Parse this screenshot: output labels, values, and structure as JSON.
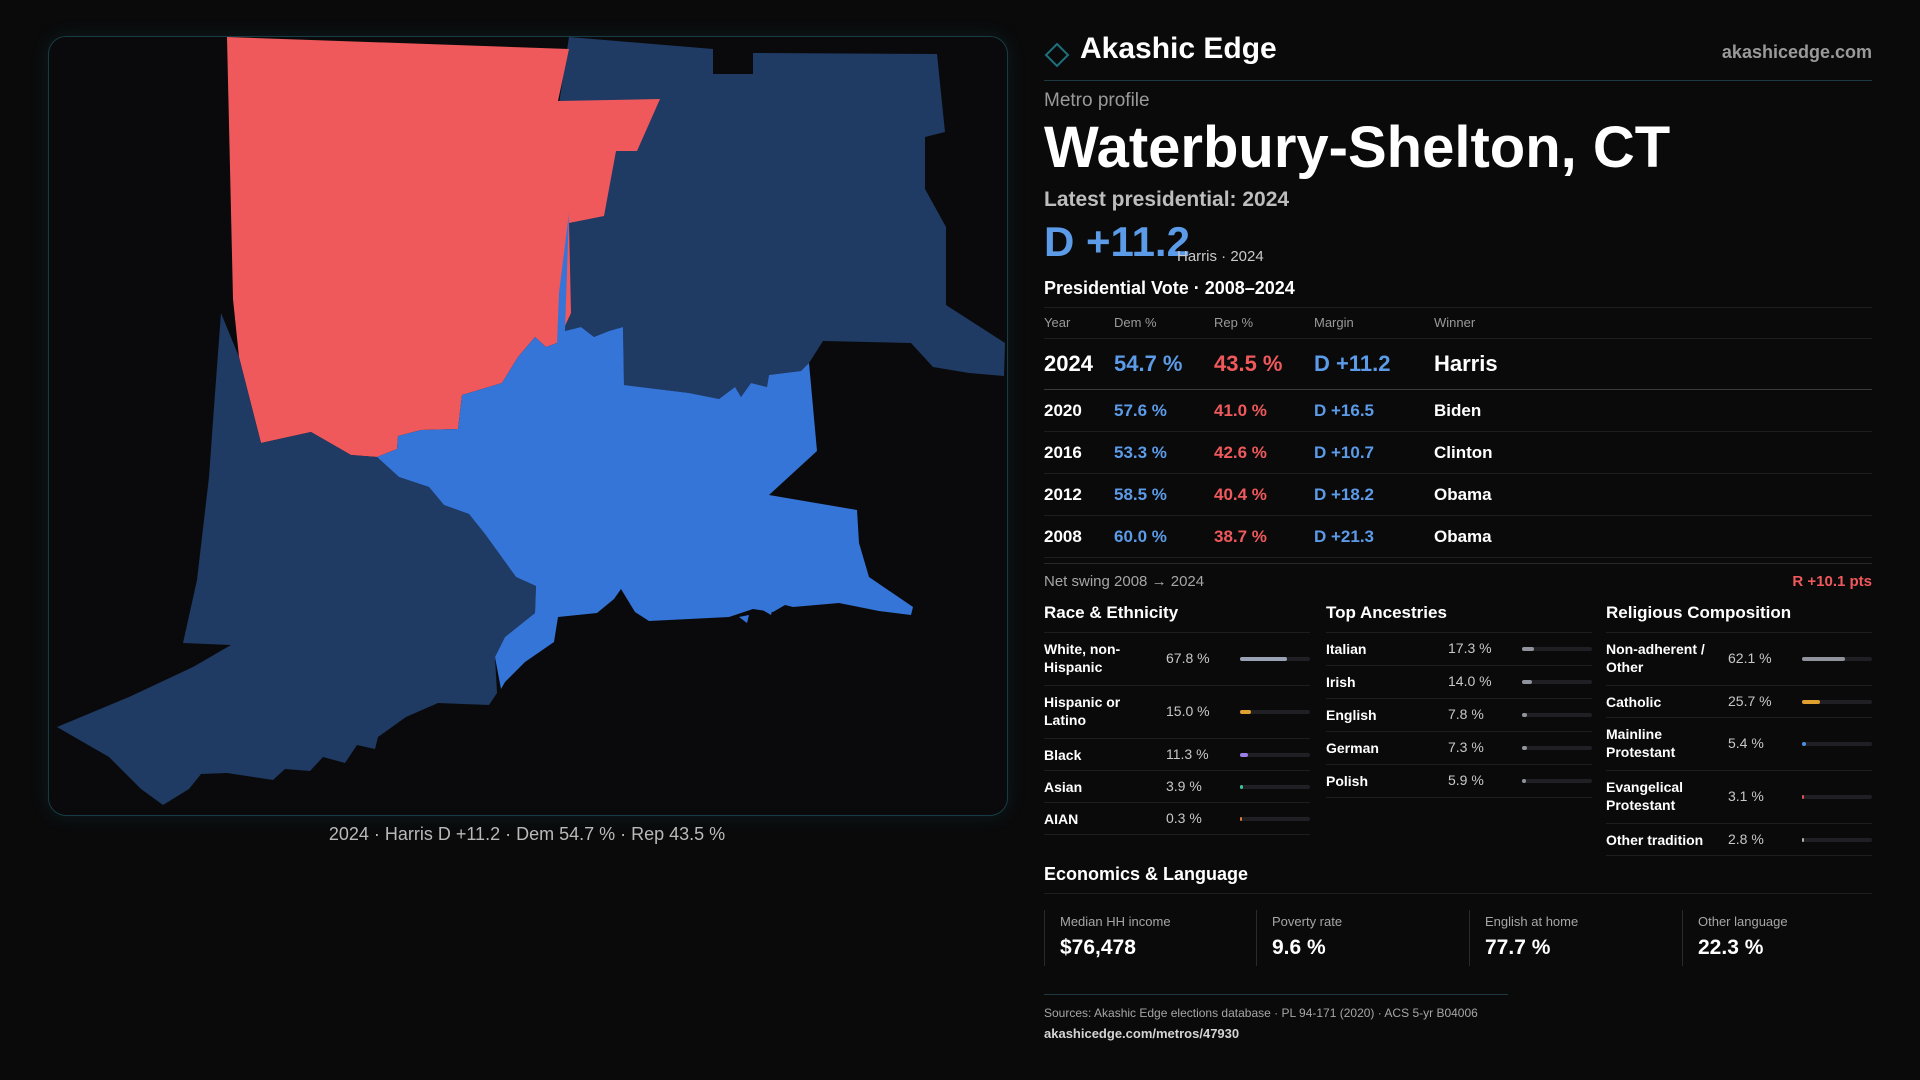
{
  "map": {
    "colors": {
      "rep_county": "#f0595c",
      "dem_strong": "#3575d8",
      "dem_dark": "#1f3a63"
    },
    "caption": "2024 · Harris D +11.2 · Dem 54.7 % · Rep 43.5 %"
  },
  "brand": {
    "name": "Akashic Edge",
    "url": "akashicedge.com",
    "logo_icon": "diamond-outline-icon",
    "accent": "#1d6f7a"
  },
  "profile": {
    "kicker": "Metro profile",
    "title": "Waterbury-Shelton, CT",
    "latest_label": "Latest presidential: 2024",
    "headline_margin": "D +11.2",
    "headline_sub": "Harris · 2024"
  },
  "votes": {
    "title": "Presidential Vote · 2008–2024",
    "headers": {
      "year": "Year",
      "dem": "Dem %",
      "rep": "Rep %",
      "margin": "Margin",
      "winner": "Winner"
    },
    "rows": [
      {
        "year": "2024",
        "dem": "54.7 %",
        "rep": "43.5 %",
        "margin": "D +11.2",
        "winner": "Harris"
      },
      {
        "year": "2020",
        "dem": "57.6 %",
        "rep": "41.0 %",
        "margin": "D +16.5",
        "winner": "Biden"
      },
      {
        "year": "2016",
        "dem": "53.3 %",
        "rep": "42.6 %",
        "margin": "D +10.7",
        "winner": "Clinton"
      },
      {
        "year": "2012",
        "dem": "58.5 %",
        "rep": "40.4 %",
        "margin": "D +18.2",
        "winner": "Obama"
      },
      {
        "year": "2008",
        "dem": "60.0 %",
        "rep": "38.7 %",
        "margin": "D +21.3",
        "winner": "Obama"
      }
    ],
    "swing_label": "Net swing 2008 → 2024",
    "swing_value": "R +10.1 pts"
  },
  "race": {
    "title": "Race & Ethnicity",
    "items": [
      {
        "label": "White, non-Hispanic",
        "value": "67.8 %",
        "pct": 67.8,
        "color": "#9aa3b5"
      },
      {
        "label": "Hispanic or Latino",
        "value": "15.0 %",
        "pct": 15.0,
        "color": "#e0a030"
      },
      {
        "label": "Black",
        "value": "11.3 %",
        "pct": 11.3,
        "color": "#9b7ee8"
      },
      {
        "label": "Asian",
        "value": "3.9 %",
        "pct": 3.9,
        "color": "#3fbf9f"
      },
      {
        "label": "AIAN",
        "value": "0.3 %",
        "pct": 0.3,
        "color": "#e07a3a"
      }
    ]
  },
  "ancestry": {
    "title": "Top Ancestries",
    "items": [
      {
        "label": "Italian",
        "value": "17.3 %",
        "pct": 17.3,
        "color": "#8e939c"
      },
      {
        "label": "Irish",
        "value": "14.0 %",
        "pct": 14.0,
        "color": "#8e939c"
      },
      {
        "label": "English",
        "value": "7.8 %",
        "pct": 7.8,
        "color": "#8e939c"
      },
      {
        "label": "German",
        "value": "7.3 %",
        "pct": 7.3,
        "color": "#8e939c"
      },
      {
        "label": "Polish",
        "value": "5.9 %",
        "pct": 5.9,
        "color": "#8e939c"
      }
    ]
  },
  "religion": {
    "title": "Religious Composition",
    "items": [
      {
        "label": "Non-adherent / Other",
        "value": "62.1 %",
        "pct": 62.1,
        "color": "#8e939c"
      },
      {
        "label": "Catholic",
        "value": "25.7 %",
        "pct": 25.7,
        "color": "#e0a030"
      },
      {
        "label": "Mainline Protestant",
        "value": "5.4 %",
        "pct": 5.4,
        "color": "#4a8fe0"
      },
      {
        "label": "Evangelical Protestant",
        "value": "3.1 %",
        "pct": 3.1,
        "color": "#e0505a"
      },
      {
        "label": "Other tradition",
        "value": "2.8 %",
        "pct": 2.8,
        "color": "#b0b0b0"
      }
    ]
  },
  "economics": {
    "title": "Economics & Language",
    "items": [
      {
        "label": "Median HH income",
        "value": "$76,478"
      },
      {
        "label": "Poverty rate",
        "value": "9.6 %"
      },
      {
        "label": "English at home",
        "value": "77.7 %"
      },
      {
        "label": "Other language",
        "value": "22.3 %"
      }
    ]
  },
  "sources": {
    "text": "Sources: Akashic Edge elections database · PL 94-171 (2020) · ACS 5-yr B04006",
    "url": "akashicedge.com/metros/47930"
  }
}
